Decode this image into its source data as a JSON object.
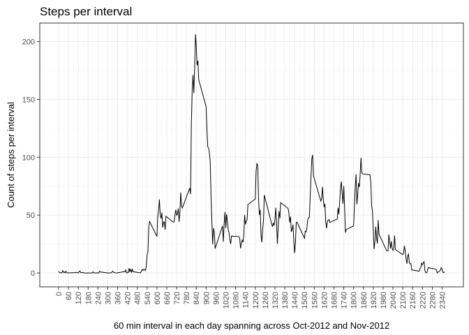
{
  "chart_data": {
    "type": "line",
    "title": "Steps per interval",
    "xlabel": "60 min interval in each day spanning across Oct-2012 and Nov-2012",
    "ylabel": "Count of steps per interval",
    "xlim": [
      -115,
      2470
    ],
    "ylim": [
      -12,
      216
    ],
    "x_ticks": [
      0,
      60,
      120,
      180,
      240,
      300,
      360,
      420,
      480,
      540,
      600,
      660,
      720,
      780,
      840,
      900,
      960,
      1020,
      1080,
      1140,
      1200,
      1260,
      1320,
      1380,
      1440,
      1500,
      1560,
      1620,
      1680,
      1740,
      1800,
      1860,
      1920,
      1980,
      2040,
      2100,
      2160,
      2220,
      2280,
      2340
    ],
    "y_ticks": [
      0,
      50,
      100,
      150,
      200
    ],
    "grid": true,
    "series": [
      {
        "color": "#000000",
        "points": [
          [
            0,
            1.7
          ],
          [
            5,
            0.3
          ],
          [
            10,
            0.1
          ],
          [
            15,
            0.2
          ],
          [
            20,
            0.1
          ],
          [
            25,
            2.1
          ],
          [
            30,
            0.5
          ],
          [
            35,
            0.9
          ],
          [
            40,
            0
          ],
          [
            45,
            1.5
          ],
          [
            50,
            0.3
          ],
          [
            55,
            0.1
          ],
          [
            100,
            0.3
          ],
          [
            105,
            0.7
          ],
          [
            110,
            0.2
          ],
          [
            115,
            0.3
          ],
          [
            120,
            0
          ],
          [
            125,
            1.1
          ],
          [
            130,
            1.8
          ],
          [
            135,
            0.2
          ],
          [
            140,
            0.2
          ],
          [
            145,
            0.4
          ],
          [
            150,
            0.3
          ],
          [
            155,
            0
          ],
          [
            200,
            0
          ],
          [
            205,
            0
          ],
          [
            210,
            1.1
          ],
          [
            215,
            0
          ],
          [
            220,
            0
          ],
          [
            225,
            0.1
          ],
          [
            230,
            0
          ],
          [
            235,
            0.2
          ],
          [
            240,
            0
          ],
          [
            245,
            0
          ],
          [
            250,
            1.5
          ],
          [
            255,
            0.9
          ],
          [
            300,
            0
          ],
          [
            305,
            0
          ],
          [
            310,
            0
          ],
          [
            315,
            0
          ],
          [
            320,
            0.2
          ],
          [
            325,
            0.6
          ],
          [
            330,
            1.6
          ],
          [
            335,
            0.6
          ],
          [
            340,
            0.5
          ],
          [
            345,
            0.1
          ],
          [
            350,
            0
          ],
          [
            355,
            0
          ],
          [
            400,
            1.2
          ],
          [
            405,
            0.9
          ],
          [
            410,
            2.6
          ],
          [
            415,
            0
          ],
          [
            420,
            0.3
          ],
          [
            425,
            0.4
          ],
          [
            430,
            4.1
          ],
          [
            435,
            0.7
          ],
          [
            440,
            3.5
          ],
          [
            445,
            0.8
          ],
          [
            450,
            3.1
          ],
          [
            455,
            1.1
          ],
          [
            500,
            0
          ],
          [
            505,
            1.6
          ],
          [
            510,
            3.0
          ],
          [
            515,
            2.2
          ],
          [
            520,
            3.3
          ],
          [
            525,
            3.0
          ],
          [
            530,
            2.1
          ],
          [
            535,
            6.1
          ],
          [
            540,
            16.0
          ],
          [
            545,
            18.3
          ],
          [
            550,
            39.5
          ],
          [
            555,
            44.5
          ],
          [
            600,
            31.5
          ],
          [
            605,
            49.3
          ],
          [
            610,
            53.8
          ],
          [
            615,
            63.5
          ],
          [
            620,
            50.0
          ],
          [
            625,
            47.1
          ],
          [
            630,
            52.2
          ],
          [
            635,
            39.3
          ],
          [
            640,
            44.0
          ],
          [
            645,
            44.2
          ],
          [
            650,
            37.4
          ],
          [
            655,
            49.0
          ],
          [
            700,
            43.8
          ],
          [
            705,
            44.4
          ],
          [
            710,
            50.5
          ],
          [
            715,
            54.5
          ],
          [
            720,
            49.9
          ],
          [
            725,
            51.0
          ],
          [
            730,
            55.7
          ],
          [
            735,
            44.3
          ],
          [
            740,
            52.3
          ],
          [
            745,
            69.5
          ],
          [
            750,
            57.8
          ],
          [
            755,
            56.2
          ],
          [
            800,
            73.4
          ],
          [
            805,
            68.2
          ],
          [
            810,
            129.4
          ],
          [
            815,
            157.5
          ],
          [
            820,
            171.2
          ],
          [
            825,
            155.4
          ],
          [
            830,
            177.3
          ],
          [
            835,
            206.2
          ],
          [
            840,
            195.9
          ],
          [
            845,
            179.6
          ],
          [
            850,
            183.4
          ],
          [
            855,
            167.0
          ],
          [
            900,
            143.5
          ],
          [
            905,
            124.0
          ],
          [
            910,
            109.1
          ],
          [
            915,
            108.1
          ],
          [
            920,
            103.7
          ],
          [
            925,
            95.97
          ],
          [
            930,
            66.2
          ],
          [
            935,
            45.2
          ],
          [
            940,
            24.8
          ],
          [
            945,
            38.8
          ],
          [
            950,
            34.98
          ],
          [
            955,
            21.1
          ],
          [
            1000,
            40.6
          ],
          [
            1005,
            26.98
          ],
          [
            1010,
            42.4
          ],
          [
            1015,
            52.7
          ],
          [
            1020,
            38.9
          ],
          [
            1025,
            50.8
          ],
          [
            1030,
            44.3
          ],
          [
            1035,
            37.4
          ],
          [
            1040,
            34.7
          ],
          [
            1045,
            28.3
          ],
          [
            1050,
            25.1
          ],
          [
            1055,
            31.9
          ],
          [
            1100,
            31.4
          ],
          [
            1105,
            29.7
          ],
          [
            1110,
            21.3
          ],
          [
            1115,
            25.5
          ],
          [
            1120,
            28.4
          ],
          [
            1125,
            26.5
          ],
          [
            1130,
            33.4
          ],
          [
            1135,
            49.98
          ],
          [
            1140,
            42.0
          ],
          [
            1145,
            44.6
          ],
          [
            1150,
            46.0
          ],
          [
            1155,
            59.2
          ],
          [
            1200,
            63.9
          ],
          [
            1205,
            87.7
          ],
          [
            1210,
            94.8
          ],
          [
            1215,
            92.8
          ],
          [
            1220,
            63.4
          ],
          [
            1225,
            50.2
          ],
          [
            1230,
            54.5
          ],
          [
            1235,
            32.4
          ],
          [
            1240,
            26.5
          ],
          [
            1245,
            37.7
          ],
          [
            1250,
            45.1
          ],
          [
            1255,
            67.3
          ],
          [
            1300,
            42.3
          ],
          [
            1305,
            39.9
          ],
          [
            1310,
            43.3
          ],
          [
            1315,
            40.98
          ],
          [
            1320,
            46.2
          ],
          [
            1325,
            56.4
          ],
          [
            1330,
            42.8
          ],
          [
            1335,
            25.1
          ],
          [
            1340,
            39.97
          ],
          [
            1345,
            53.5
          ],
          [
            1350,
            47.3
          ],
          [
            1355,
            60.8
          ],
          [
            1400,
            55.8
          ],
          [
            1405,
            51.96
          ],
          [
            1410,
            43.6
          ],
          [
            1415,
            48.7
          ],
          [
            1420,
            35.5
          ],
          [
            1425,
            37.5
          ],
          [
            1430,
            41.8
          ],
          [
            1435,
            27.5
          ],
          [
            1440,
            17.1
          ],
          [
            1445,
            26.1
          ],
          [
            1450,
            43.6
          ],
          [
            1455,
            43.8
          ],
          [
            1500,
            30.0
          ],
          [
            1505,
            36.1
          ],
          [
            1510,
            35.5
          ],
          [
            1515,
            38.8
          ],
          [
            1520,
            45.96
          ],
          [
            1525,
            47.8
          ],
          [
            1530,
            48.1
          ],
          [
            1535,
            65.3
          ],
          [
            1540,
            82.9
          ],
          [
            1545,
            98.7
          ],
          [
            1550,
            102.1
          ],
          [
            1555,
            83.96
          ],
          [
            1600,
            62.1
          ],
          [
            1605,
            64.1
          ],
          [
            1610,
            74.5
          ],
          [
            1615,
            63.2
          ],
          [
            1620,
            56.9
          ],
          [
            1625,
            59.8
          ],
          [
            1630,
            43.9
          ],
          [
            1635,
            38.6
          ],
          [
            1640,
            44.7
          ],
          [
            1645,
            45.5
          ],
          [
            1650,
            46.2
          ],
          [
            1655,
            43.7
          ],
          [
            1700,
            46.6
          ],
          [
            1705,
            56.3
          ],
          [
            1710,
            50.7
          ],
          [
            1715,
            61.2
          ],
          [
            1720,
            73.4
          ],
          [
            1725,
            79.1
          ],
          [
            1730,
            68.9
          ],
          [
            1735,
            59.7
          ],
          [
            1740,
            75.1
          ],
          [
            1745,
            56.5
          ],
          [
            1750,
            34.8
          ],
          [
            1755,
            37.5
          ],
          [
            1800,
            40.7
          ],
          [
            1805,
            58.0
          ],
          [
            1810,
            74.7
          ],
          [
            1815,
            85.3
          ],
          [
            1820,
            59.3
          ],
          [
            1825,
            67.8
          ],
          [
            1830,
            77.7
          ],
          [
            1835,
            74.2
          ],
          [
            1840,
            85.3
          ],
          [
            1845,
            99.5
          ],
          [
            1850,
            86.6
          ],
          [
            1855,
            85.6
          ],
          [
            1900,
            84.9
          ],
          [
            1905,
            77.8
          ],
          [
            1910,
            58.0
          ],
          [
            1915,
            53.4
          ],
          [
            1920,
            36.3
          ],
          [
            1925,
            20.7
          ],
          [
            1930,
            27.4
          ],
          [
            1935,
            40.0
          ],
          [
            1940,
            30.2
          ],
          [
            1945,
            25.5
          ],
          [
            1950,
            45.7
          ],
          [
            1955,
            33.5
          ],
          [
            2000,
            19.6
          ],
          [
            2005,
            19.0
          ],
          [
            2010,
            19.3
          ],
          [
            2015,
            33.3
          ],
          [
            2020,
            26.8
          ],
          [
            2025,
            21.2
          ],
          [
            2030,
            27.3
          ],
          [
            2035,
            21.3
          ],
          [
            2040,
            19.5
          ],
          [
            2045,
            21.3
          ],
          [
            2050,
            32.3
          ],
          [
            2055,
            20.2
          ],
          [
            2100,
            15.9
          ],
          [
            2105,
            17.2
          ],
          [
            2110,
            23.5
          ],
          [
            2115,
            19.2
          ],
          [
            2120,
            12.5
          ],
          [
            2125,
            8.0
          ],
          [
            2130,
            14.7
          ],
          [
            2135,
            16.3
          ],
          [
            2140,
            8.7
          ],
          [
            2145,
            7.8
          ],
          [
            2150,
            8.1
          ],
          [
            2155,
            2.6
          ],
          [
            2200,
            1.5
          ],
          [
            2205,
            3.7
          ],
          [
            2210,
            4.8
          ],
          [
            2215,
            8.5
          ],
          [
            2220,
            7.1
          ],
          [
            2225,
            8.7
          ],
          [
            2230,
            9.8
          ],
          [
            2235,
            2.2
          ],
          [
            2240,
            0.3
          ],
          [
            2245,
            0.1
          ],
          [
            2250,
            1.6
          ],
          [
            2255,
            4.6
          ],
          [
            2300,
            3.3
          ],
          [
            2305,
            2.8
          ],
          [
            2310,
            0
          ],
          [
            2315,
            0.8
          ],
          [
            2320,
            1.0
          ],
          [
            2325,
            1.6
          ],
          [
            2330,
            2.6
          ],
          [
            2335,
            4.7
          ],
          [
            2340,
            3.3
          ],
          [
            2345,
            0.6
          ],
          [
            2350,
            0.2
          ],
          [
            2355,
            1.1
          ]
        ]
      }
    ]
  }
}
